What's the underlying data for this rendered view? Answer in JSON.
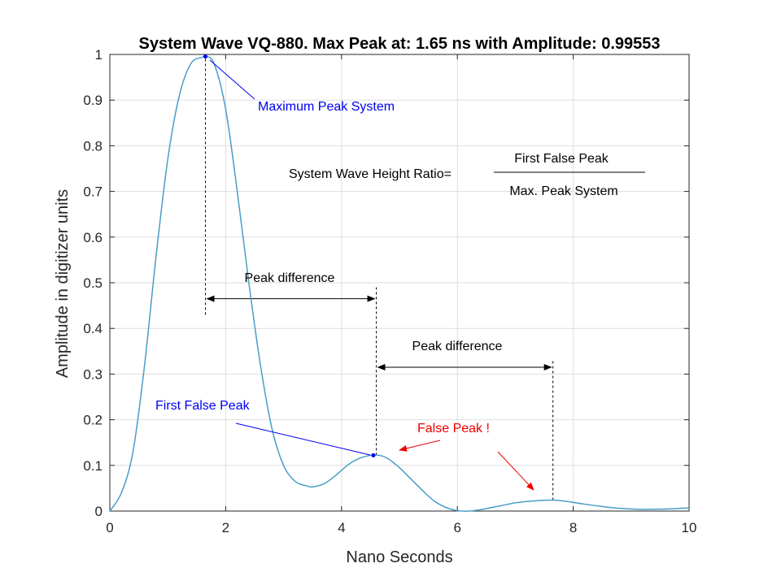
{
  "chart_data": {
    "type": "line",
    "title": "System Wave VQ-880. Max Peak at: 1.65 ns with Amplitude: 0.99553",
    "xlabel": "Nano Seconds",
    "ylabel": "Amplitude in digitizer units",
    "xlim": [
      0,
      10
    ],
    "ylim": [
      0,
      1
    ],
    "xticks": [
      0,
      2,
      4,
      6,
      8,
      10
    ],
    "yticks": [
      0,
      0.1,
      0.2,
      0.3,
      0.4,
      0.5,
      0.6,
      0.7,
      0.8,
      0.9,
      1
    ],
    "xtick_labels": [
      "0",
      "2",
      "4",
      "6",
      "8",
      "10"
    ],
    "ytick_labels": [
      "0",
      "0.1",
      "0.2",
      "0.3",
      "0.4",
      "0.5",
      "0.6",
      "0.7",
      "0.8",
      "0.9",
      "1"
    ],
    "grid": true,
    "series": [
      {
        "color": "#4A9CC8",
        "x": [
          0,
          0.2,
          0.4,
          0.6,
          0.8,
          1.0,
          1.2,
          1.4,
          1.6,
          1.65,
          1.8,
          2.0,
          2.2,
          2.4,
          2.6,
          2.8,
          3.0,
          3.2,
          3.4,
          3.5,
          3.7,
          3.9,
          4.1,
          4.3,
          4.5,
          4.65,
          4.8,
          5.0,
          5.2,
          5.4,
          5.6,
          5.8,
          6.0,
          6.2,
          6.4,
          6.6,
          6.8,
          7.0,
          7.2,
          7.4,
          7.65,
          7.9,
          8.2,
          8.5,
          8.8,
          9.1,
          9.4,
          9.7,
          10.0
        ],
        "y": [
          0.0,
          0.04,
          0.13,
          0.32,
          0.56,
          0.77,
          0.91,
          0.98,
          0.994,
          0.9955,
          0.98,
          0.88,
          0.7,
          0.5,
          0.32,
          0.18,
          0.1,
          0.065,
          0.055,
          0.053,
          0.06,
          0.078,
          0.1,
          0.115,
          0.122,
          0.122,
          0.115,
          0.095,
          0.07,
          0.045,
          0.022,
          0.008,
          0.001,
          0.0,
          0.003,
          0.008,
          0.013,
          0.018,
          0.021,
          0.023,
          0.024,
          0.021,
          0.015,
          0.01,
          0.006,
          0.004,
          0.004,
          0.005,
          0.007
        ]
      }
    ],
    "markers": [
      {
        "name": "max-peak-marker",
        "x": 1.65,
        "y": 0.9955,
        "color": "#0000ee"
      },
      {
        "name": "first-false-peak-marker",
        "x": 4.55,
        "y": 0.122,
        "color": "#0000ee"
      }
    ],
    "vlines": [
      {
        "name": "max-peak-vline",
        "x": 1.65,
        "y0": 0.43,
        "y1": 0.9955
      },
      {
        "name": "first-false-peak-vline",
        "x": 4.6,
        "y0": 0.122,
        "y1": 0.49
      },
      {
        "name": "false-peak-vline",
        "x": 7.65,
        "y0": 0.024,
        "y1": 0.33
      }
    ],
    "double_arrows": [
      {
        "name": "peak-difference-arrow-1",
        "x0": 1.65,
        "x1": 4.6,
        "y": 0.465
      },
      {
        "name": "peak-difference-arrow-2",
        "x0": 4.6,
        "x1": 7.65,
        "y": 0.315
      }
    ],
    "annotations": {
      "max_peak_label": "Maximum Peak System",
      "first_false_peak_label": "First False Peak",
      "false_peak_label": "False Peak !",
      "peak_difference_1": "Peak difference",
      "peak_difference_2": "Peak difference",
      "ratio_label": "System Wave Height Ratio=",
      "ratio_numerator": "First False Peak",
      "ratio_denominator": "Max. Peak System",
      "blue_color": "#0000ee",
      "red_color": "#ee0000"
    }
  }
}
